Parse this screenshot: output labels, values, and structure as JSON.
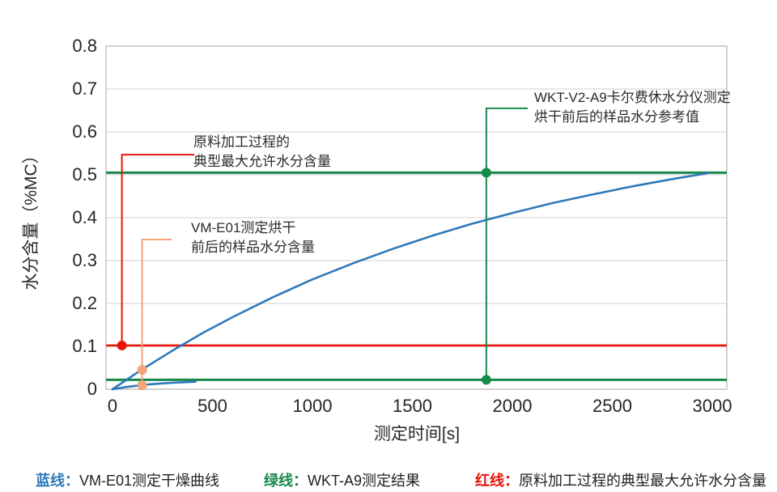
{
  "page": {
    "background": "#FFFFFF"
  },
  "chart_data": {
    "type": "line",
    "title": "",
    "xlabel": "测定时间[s]",
    "ylabel": "水分含量（%MC）",
    "xlim": [
      0,
      3000
    ],
    "ylim": [
      0,
      0.8
    ],
    "x_ticks": [
      0,
      500,
      1000,
      1500,
      2000,
      2500,
      3000
    ],
    "y_ticks": [
      0,
      0.1,
      0.2,
      0.3,
      0.4,
      0.5,
      0.6,
      0.7,
      0.8
    ],
    "grid": "horizontal",
    "legend_position": "bottom",
    "colors": {
      "blue": "#2E79B9",
      "green": "#168A4D",
      "red": "#E8150D",
      "orange": "#F2A47C",
      "gridline": "#D9D9D9",
      "plot_border": "#C4C4C4"
    },
    "series": [
      {
        "name": "vm-e01-drying-curve-before",
        "label": "VM-E01测定干燥曲线（烘干前）",
        "type": "line",
        "color": "#2E79B9",
        "width": 2.6,
        "points": [
          [
            0,
            0
          ],
          [
            150,
            0.047
          ],
          [
            300,
            0.09
          ],
          [
            450,
            0.131
          ],
          [
            600,
            0.168
          ],
          [
            800,
            0.214
          ],
          [
            1000,
            0.256
          ],
          [
            1200,
            0.293
          ],
          [
            1400,
            0.327
          ],
          [
            1600,
            0.358
          ],
          [
            1800,
            0.386
          ],
          [
            2000,
            0.411
          ],
          [
            2200,
            0.434
          ],
          [
            2400,
            0.454
          ],
          [
            2600,
            0.473
          ],
          [
            2800,
            0.49
          ],
          [
            2980,
            0.504
          ]
        ]
      },
      {
        "name": "vm-e01-drying-curve-after",
        "label": "VM-E01测定干燥曲线（烘干后）",
        "type": "line",
        "color": "#2E79B9",
        "width": 2.6,
        "points": [
          [
            0,
            0
          ],
          [
            60,
            0.0045
          ],
          [
            120,
            0.0082
          ],
          [
            180,
            0.0112
          ],
          [
            240,
            0.0134
          ],
          [
            300,
            0.0151
          ],
          [
            360,
            0.0164
          ],
          [
            415,
            0.0175
          ]
        ]
      },
      {
        "name": "wkt-a9-reference-before",
        "label": "WKT-A9测定结果（烘干前）",
        "type": "hline",
        "color": "#168A4D",
        "width": 3,
        "y": 0.505
      },
      {
        "name": "wkt-a9-reference-after",
        "label": "WKT-A9测定结果（烘干后）",
        "type": "hline",
        "color": "#168A4D",
        "width": 3,
        "y": 0.022
      },
      {
        "name": "max-allowed-moisture-line",
        "label": "原料加工过程的典型最大允许水分含量",
        "type": "hline",
        "color": "#E8150D",
        "width": 2.6,
        "y": 0.102
      }
    ],
    "markers": [
      {
        "name": "marker-max-allowed",
        "color": "#E8150D",
        "x": 47,
        "y": 0.102,
        "r": 6
      },
      {
        "name": "marker-vm-e01-before",
        "color": "#F2A47C",
        "x": 148,
        "y": 0.045,
        "r": 6
      },
      {
        "name": "marker-vm-e01-after",
        "color": "#F2A47C",
        "x": 148,
        "y": 0.009,
        "r": 6
      },
      {
        "name": "marker-wkt-before",
        "color": "#168A4D",
        "x": 1870,
        "y": 0.505,
        "r": 6
      },
      {
        "name": "marker-wkt-after",
        "color": "#168A4D",
        "x": 1870,
        "y": 0.022,
        "r": 6
      }
    ],
    "annotations": [
      {
        "name": "annotation-max-allowed",
        "color": "#E8150D",
        "lines": [
          "原料加工过程的",
          "典型最大允许水分含量"
        ],
        "anchor_x": 47,
        "elbow_y": 0.547,
        "drop_to_y": 0.102,
        "h_end_x": 409
      },
      {
        "name": "annotation-vm-e01",
        "color": "#F2A47C",
        "lines": [
          "VM-E01测定烘干",
          "前后的样品水分含量"
        ],
        "anchor_x": 148,
        "elbow_y": 0.349,
        "drop_to_y": 0.009,
        "h_end_x": 295
      },
      {
        "name": "annotation-wkt",
        "color": "#168A4D",
        "lines": [
          "WKT-V2-A9卡尔费休水分仪测定",
          "烘干前后的样品水分参考值"
        ],
        "anchor_x": 1870,
        "elbow_y": 0.655,
        "drop_to_y": 0.022,
        "h_end_x": 2077
      }
    ]
  },
  "legend": {
    "items": [
      {
        "label": "蓝线：",
        "color": "#2E79B9",
        "text": "VM-E01测定干燥曲线"
      },
      {
        "label": "绿线：",
        "color": "#168A4D",
        "text": "WKT-A9测定结果"
      },
      {
        "label": "红线：",
        "color": "#E8150D",
        "text": "原料加工过程的典型最大允许水分含量"
      }
    ]
  }
}
